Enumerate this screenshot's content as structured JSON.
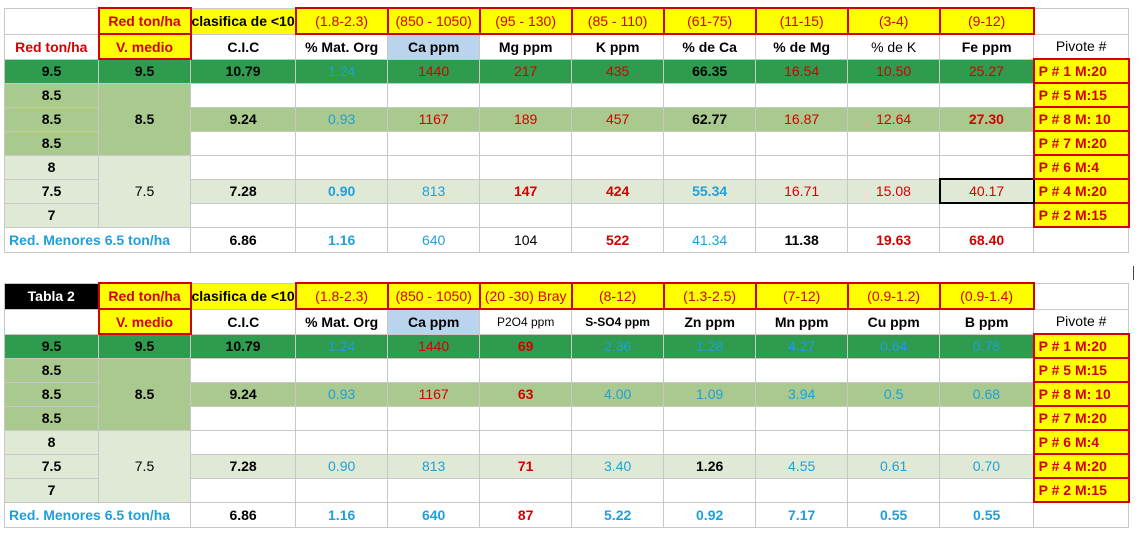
{
  "table1": {
    "header": [
      "",
      "Red ton/ha",
      "clasifica de <10",
      "(1.8-2.3)",
      "(850 - 1050)",
      "(95 - 130)",
      "(85 - 110)",
      "(61-75)",
      "(11-15)",
      "(3-4)",
      "(9-12)",
      ""
    ],
    "columns": [
      "Red ton/ha",
      "V. medio",
      "C.I.C",
      "% Mat. Org",
      "Ca ppm",
      "Mg ppm",
      "K ppm",
      "% de Ca",
      "% de Mg",
      "% de K",
      "Fe ppm",
      "Pivote #"
    ],
    "rows": [
      {
        "red": "9.5",
        "vmedio": "9.5",
        "cells": [
          "10.79",
          "1.24",
          "1440",
          "217",
          "435",
          "66.35",
          "16.54",
          "10.50",
          "25.27"
        ],
        "pivote": "P # 1  M:20"
      },
      {
        "red": "8.5",
        "vmedio": "",
        "cells": [
          "",
          "",
          "",
          "",
          "",
          "",
          "",
          "",
          ""
        ],
        "pivote": "P # 5   M:15"
      },
      {
        "red": "8.5",
        "vmedio": "8.5",
        "cells": [
          "9.24",
          "0.93",
          "1167",
          "189",
          "457",
          "62.77",
          "16.87",
          "12.64",
          "27.30"
        ],
        "pivote": "P # 8 M: 10"
      },
      {
        "red": "8.5",
        "vmedio": "",
        "cells": [
          "",
          "",
          "",
          "",
          "",
          "",
          "",
          "",
          ""
        ],
        "pivote": "P # 7  M:20"
      },
      {
        "red": "8",
        "vmedio": "",
        "cells": [
          "",
          "",
          "",
          "",
          "",
          "",
          "",
          "",
          ""
        ],
        "pivote": "P # 6   M:4"
      },
      {
        "red": "7.5",
        "vmedio": "7.5",
        "cells": [
          "7.28",
          "0.90",
          "813",
          "147",
          "424",
          "55.34",
          "16.71",
          "15.08",
          "40.17"
        ],
        "pivote": "P # 4   M:20"
      },
      {
        "red": "7",
        "vmedio": "",
        "cells": [
          "",
          "",
          "",
          "",
          "",
          "",
          "",
          "",
          ""
        ],
        "pivote": "P # 2   M:15"
      }
    ],
    "footer": {
      "label": "Red. Menores 6.5 ton/ha",
      "cells": [
        "6.86",
        "1.16",
        "640",
        "104",
        "522",
        "41.34",
        "11.38",
        "19.63",
        "68.40"
      ]
    }
  },
  "table2": {
    "header": [
      "Tabla 2",
      "Red ton/ha",
      "clasifica de <10",
      "(1.8-2.3)",
      "(850 - 1050)",
      "(20 -30) Bray",
      "(8-12)",
      "(1.3-2.5)",
      "(7-12)",
      "(0.9-1.2)",
      "(0.9-1.4)",
      ""
    ],
    "columns": [
      "",
      "V. medio",
      "C.I.C",
      "% Mat. Org",
      "Ca ppm",
      "P2O4  ppm",
      "S-SO4 ppm",
      "Zn ppm",
      "Mn ppm",
      "Cu ppm",
      "B ppm",
      "Pivote #"
    ],
    "rows": [
      {
        "red": "9.5",
        "vmedio": "9.5",
        "cells": [
          "10.79",
          "1.24",
          "1440",
          "69",
          "2.36",
          "1.28",
          "4.27",
          "0.64",
          "0.78"
        ],
        "pivote": "P # 1  M:20"
      },
      {
        "red": "8.5",
        "vmedio": "",
        "cells": [
          "",
          "",
          "",
          "",
          "",
          "",
          "",
          "",
          ""
        ],
        "pivote": "P # 5   M:15"
      },
      {
        "red": "8.5",
        "vmedio": "8.5",
        "cells": [
          "9.24",
          "0.93",
          "1167",
          "63",
          "4.00",
          "1.09",
          "3.94",
          "0.5",
          "0.68"
        ],
        "pivote": "P # 8 M: 10"
      },
      {
        "red": "8.5",
        "vmedio": "",
        "cells": [
          "",
          "",
          "",
          "",
          "",
          "",
          "",
          "",
          ""
        ],
        "pivote": "P # 7  M:20"
      },
      {
        "red": "8",
        "vmedio": "",
        "cells": [
          "",
          "",
          "",
          "",
          "",
          "",
          "",
          "",
          ""
        ],
        "pivote": "P # 6   M:4"
      },
      {
        "red": "7.5",
        "vmedio": "7.5",
        "cells": [
          "7.28",
          "0.90",
          "813",
          "71",
          "3.40",
          "1.26",
          "4.55",
          "0.61",
          "0.70"
        ],
        "pivote": "P # 4   M:20"
      },
      {
        "red": "7",
        "vmedio": "",
        "cells": [
          "",
          "",
          "",
          "",
          "",
          "",
          "",
          "",
          ""
        ],
        "pivote": "P # 2   M:15"
      }
    ],
    "footer": {
      "label": "Red. Menores 6.5 ton/ha",
      "cells": [
        "6.86",
        "1.16",
        "640",
        "87",
        "5.22",
        "0.92",
        "7.17",
        "0.55",
        "0.55"
      ]
    }
  },
  "colors": {
    "header_yellow": "#ffff00",
    "dark_green": "#2e9b4f",
    "light_green": "#a9c98f",
    "pale_green": "#dfe9d5",
    "pale_blue": "#b9d4ec",
    "red_text": "#d40000",
    "blue_text": "#1ea0dc"
  }
}
